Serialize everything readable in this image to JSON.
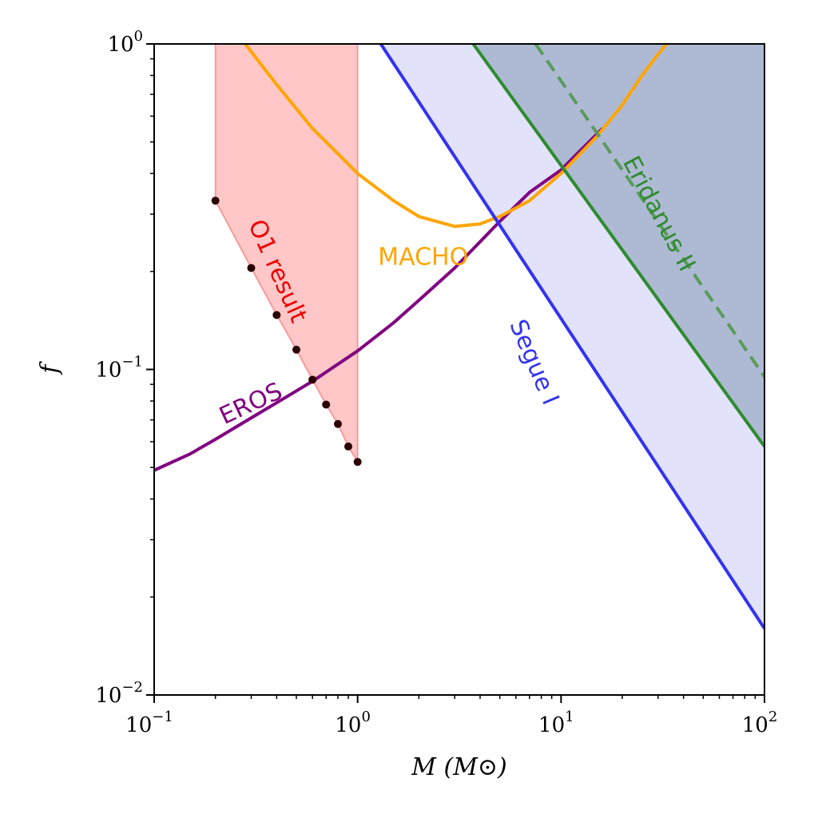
{
  "chart_data": {
    "type": "line",
    "title": "",
    "xlabel": "M (M⊙)",
    "ylabel": "f",
    "xscale": "log",
    "yscale": "log",
    "xlim": [
      0.1,
      100
    ],
    "ylim": [
      0.01,
      1
    ],
    "grid": false,
    "x_ticks": [
      {
        "value": 0.1,
        "base": "10",
        "exp": "−1"
      },
      {
        "value": 1,
        "base": "10",
        "exp": "0"
      },
      {
        "value": 10,
        "base": "10",
        "exp": "1"
      },
      {
        "value": 100,
        "base": "10",
        "exp": "2"
      }
    ],
    "y_ticks": [
      {
        "value": 0.01,
        "base": "10",
        "exp": "−2"
      },
      {
        "value": 0.1,
        "base": "10",
        "exp": "−1"
      },
      {
        "value": 1,
        "base": "10",
        "exp": "0"
      }
    ],
    "series": [
      {
        "name": "EROS",
        "color": "#800080",
        "style": "solid",
        "x": [
          0.1,
          0.15,
          0.2,
          0.3,
          0.4,
          0.6,
          1.0,
          1.5,
          2.0,
          3.0,
          5.0,
          7.0,
          10.0,
          12.0,
          16.0
        ],
        "y": [
          0.049,
          0.055,
          0.061,
          0.071,
          0.079,
          0.092,
          0.114,
          0.139,
          0.163,
          0.205,
          0.285,
          0.35,
          0.41,
          0.46,
          0.55
        ]
      },
      {
        "name": "MACHO",
        "color": "#FFA500",
        "style": "solid",
        "x": [
          0.28,
          0.4,
          0.6,
          0.8,
          1.0,
          1.5,
          2.0,
          3.0,
          4.0,
          5.0,
          7.0,
          10.0,
          15.0,
          20.0,
          25.0,
          30.0,
          33.0
        ],
        "y": [
          1.0,
          0.75,
          0.55,
          0.46,
          0.4,
          0.33,
          0.295,
          0.275,
          0.28,
          0.295,
          0.33,
          0.4,
          0.52,
          0.65,
          0.8,
          0.93,
          1.0
        ]
      },
      {
        "name": "Segue I",
        "color": "#3333ee",
        "style": "solid",
        "fill": "#e2e2fb",
        "x": [
          1.3,
          100
        ],
        "y": [
          1.0,
          0.016
        ]
      },
      {
        "name": "Eridanus II",
        "color": "#2e8b2e",
        "style": "solid",
        "fill": "rgba(70,115,135,0.32)",
        "x": [
          3.7,
          100
        ],
        "y": [
          1.0,
          0.058
        ]
      },
      {
        "name": "Eridanus II (dashed)",
        "color": "#5a9a5a",
        "style": "dashed",
        "x": [
          7.5,
          100
        ],
        "y": [
          1.0,
          0.095
        ]
      },
      {
        "name": "O1 result",
        "color": "#ee0000",
        "style": "points",
        "fill": "rgba(255,130,130,0.45)",
        "x": [
          0.2,
          0.3,
          0.4,
          0.5,
          0.6,
          0.7,
          0.8,
          0.9,
          1.0
        ],
        "y": [
          0.33,
          0.205,
          0.147,
          0.115,
          0.093,
          0.078,
          0.068,
          0.058,
          0.052
        ]
      }
    ],
    "annotations": [
      {
        "text": "O1 result",
        "color": "#ee0000",
        "x": 0.4,
        "y": 0.2,
        "rotation": 66
      },
      {
        "text": "MACHO",
        "color": "#FFA500",
        "x": 2.1,
        "y": 0.22,
        "rotation": 0
      },
      {
        "text": "EROS",
        "color": "#800080",
        "x": 0.3,
        "y": 0.078,
        "rotation": -25
      },
      {
        "text": "Segue I",
        "color": "#3333ee",
        "x": 7.3,
        "y": 0.105,
        "rotation": 67
      },
      {
        "text": "Eridanus II",
        "color": "#2e8b2e",
        "x": 30.0,
        "y": 0.3,
        "rotation": 62
      }
    ]
  }
}
